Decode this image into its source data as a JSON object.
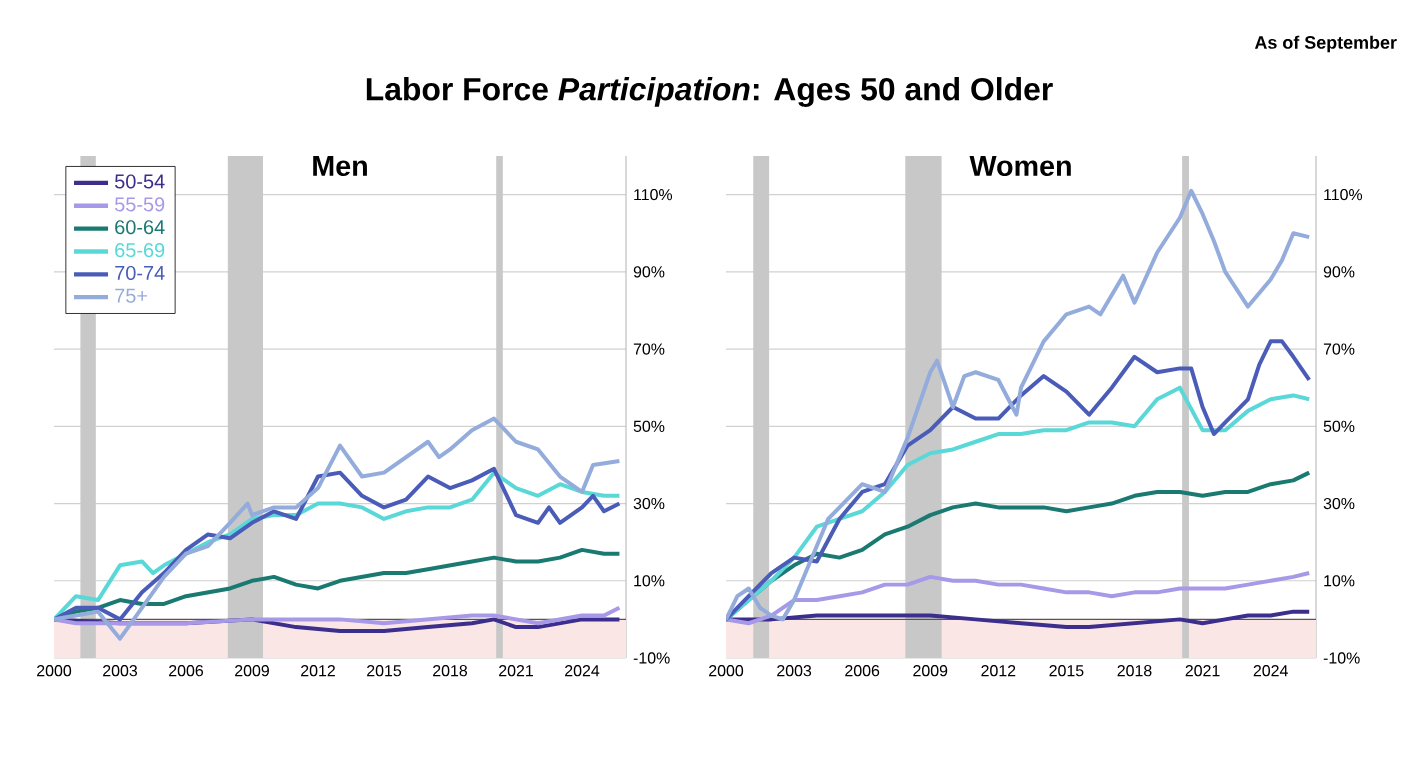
{
  "chart_data": [
    {
      "type": "line",
      "title": "Men",
      "annotations": [
        "Labor Force *Participation*: Ages 50 and Older",
        "As of September"
      ],
      "xlim": [
        2000,
        2026
      ],
      "ylim": [
        -10,
        120
      ],
      "xticks": [
        2000,
        2003,
        2006,
        2009,
        2012,
        2015,
        2018,
        2021,
        2024
      ],
      "yticks": [
        {
          "value": -10,
          "label": "-10%"
        },
        {
          "value": 10,
          "label": "10%"
        },
        {
          "value": 30,
          "label": "30%"
        },
        {
          "value": 50,
          "label": "50%"
        },
        {
          "value": 70,
          "label": "70%"
        },
        {
          "value": 90,
          "label": "90%"
        },
        {
          "value": 110,
          "label": "110%"
        }
      ],
      "grid": "y",
      "legend": "top left",
      "bands": [
        {
          "axis": "y",
          "from": -10,
          "to": 0,
          "color": "#fbe6e6"
        },
        {
          "axis": "x",
          "from": 2001.2,
          "to": 2001.9,
          "color": "#c8c8c8"
        },
        {
          "axis": "x",
          "from": 2007.9,
          "to": 2009.5,
          "color": "#c8c8c8"
        },
        {
          "axis": "x",
          "from": 2020.1,
          "to": 2020.4,
          "color": "#c8c8c8"
        }
      ],
      "ref_lines": [
        {
          "axis": "y",
          "value": 0,
          "color": "#555555"
        }
      ],
      "series": [
        {
          "name": "50-54",
          "color": "#3b2e8c",
          "x": [
            2000,
            2003,
            2006,
            2009,
            2011,
            2013,
            2015,
            2017,
            2019,
            2020,
            2021,
            2022,
            2023,
            2024,
            2025,
            2025.7
          ],
          "values": [
            0,
            -1,
            -1,
            0,
            -2,
            -3,
            -3,
            -2,
            -1,
            0,
            -2,
            -2,
            -1,
            0,
            0,
            0
          ]
        },
        {
          "name": "55-59",
          "color": "#a898e8",
          "x": [
            2000,
            2001,
            2003,
            2006,
            2009,
            2010,
            2012,
            2013,
            2015,
            2017,
            2019,
            2020,
            2021,
            2022,
            2023,
            2024,
            2025,
            2025.7
          ],
          "values": [
            0,
            -1,
            -1,
            -1,
            0,
            0,
            0,
            0,
            -1,
            0,
            1,
            1,
            0,
            -1,
            0,
            1,
            1,
            3
          ]
        },
        {
          "name": "60-64",
          "color": "#1a7a72",
          "x": [
            2000,
            2001,
            2002,
            2003,
            2004,
            2005,
            2006,
            2007,
            2008,
            2009,
            2010,
            2011,
            2012,
            2013,
            2014,
            2015,
            2016,
            2017,
            2018,
            2019,
            2020,
            2021,
            2022,
            2023,
            2024,
            2025,
            2025.7
          ],
          "values": [
            0,
            2,
            3,
            5,
            4,
            4,
            6,
            7,
            8,
            10,
            11,
            9,
            8,
            10,
            11,
            12,
            12,
            13,
            14,
            15,
            16,
            15,
            15,
            16,
            18,
            17,
            17
          ]
        },
        {
          "name": "65-69",
          "color": "#5ad8d8",
          "x": [
            2000,
            2001,
            2002,
            2003,
            2004,
            2004.5,
            2005,
            2006,
            2007,
            2008,
            2009,
            2010,
            2011,
            2012,
            2013,
            2014,
            2015,
            2016,
            2017,
            2018,
            2019,
            2020,
            2021,
            2022,
            2023,
            2024,
            2025,
            2025.7
          ],
          "values": [
            0,
            6,
            5,
            14,
            15,
            12,
            14,
            17,
            20,
            22,
            26,
            27,
            27,
            30,
            30,
            29,
            26,
            28,
            29,
            29,
            31,
            38,
            34,
            32,
            35,
            33,
            32,
            32
          ]
        },
        {
          "name": "70-74",
          "color": "#4a5cb8",
          "x": [
            2000,
            2001,
            2002,
            2003,
            2004,
            2005,
            2006,
            2007,
            2008,
            2009,
            2010,
            2011,
            2012,
            2013,
            2014,
            2015,
            2016,
            2017,
            2018,
            2019,
            2020,
            2021,
            2022,
            2022.5,
            2023,
            2024,
            2024.5,
            2025,
            2025.7
          ],
          "values": [
            0,
            3,
            3,
            0,
            7,
            12,
            18,
            22,
            21,
            25,
            28,
            26,
            37,
            38,
            32,
            29,
            31,
            37,
            34,
            36,
            39,
            27,
            25,
            29,
            25,
            29,
            32,
            28,
            30
          ]
        },
        {
          "name": "75+",
          "color": "#94acdc",
          "x": [
            2000,
            2001,
            2002,
            2003,
            2004,
            2005,
            2006,
            2007,
            2008,
            2008.8,
            2009,
            2010,
            2011,
            2012,
            2013,
            2014,
            2015,
            2016,
            2017,
            2017.5,
            2018,
            2019,
            2020,
            2021,
            2022,
            2023,
            2024,
            2024.5,
            2025.7
          ],
          "values": [
            0,
            1,
            2,
            -5,
            3,
            11,
            17,
            19,
            25,
            30,
            27,
            29,
            29,
            34,
            45,
            37,
            38,
            42,
            46,
            42,
            44,
            49,
            52,
            46,
            44,
            37,
            33,
            40,
            41
          ]
        }
      ]
    },
    {
      "type": "line",
      "title": "Women",
      "xlim": [
        2000,
        2026
      ],
      "ylim": [
        -10,
        120
      ],
      "xticks": [
        2000,
        2003,
        2006,
        2009,
        2012,
        2015,
        2018,
        2021,
        2024
      ],
      "yticks": [
        {
          "value": -10,
          "label": "-10%"
        },
        {
          "value": 10,
          "label": "10%"
        },
        {
          "value": 30,
          "label": "30%"
        },
        {
          "value": 50,
          "label": "50%"
        },
        {
          "value": 70,
          "label": "70%"
        },
        {
          "value": 90,
          "label": "90%"
        },
        {
          "value": 110,
          "label": "110%"
        }
      ],
      "grid": "y",
      "bands": [
        {
          "axis": "y",
          "from": -10,
          "to": 0,
          "color": "#fbe6e6"
        },
        {
          "axis": "x",
          "from": 2001.2,
          "to": 2001.9,
          "color": "#c8c8c8"
        },
        {
          "axis": "x",
          "from": 2007.9,
          "to": 2009.5,
          "color": "#c8c8c8"
        },
        {
          "axis": "x",
          "from": 2020.1,
          "to": 2020.4,
          "color": "#c8c8c8"
        }
      ],
      "ref_lines": [
        {
          "axis": "y",
          "value": 0,
          "color": "#555555"
        }
      ],
      "series": [
        {
          "color": "#3b2e8c",
          "x": [
            2000,
            2002,
            2004,
            2006,
            2008,
            2009,
            2011,
            2013,
            2015,
            2016,
            2018,
            2020,
            2021,
            2022,
            2023,
            2024,
            2025,
            2025.7
          ],
          "values": [
            0,
            0,
            1,
            1,
            1,
            1,
            0,
            -1,
            -2,
            -2,
            -1,
            0,
            -1,
            0,
            1,
            1,
            2,
            2
          ]
        },
        {
          "color": "#a898e8",
          "x": [
            2000,
            2001,
            2002,
            2003,
            2004,
            2005,
            2006,
            2007,
            2008,
            2009,
            2010,
            2011,
            2012,
            2013,
            2014,
            2015,
            2016,
            2017,
            2018,
            2019,
            2020,
            2021,
            2022,
            2023,
            2024,
            2025,
            2025.7
          ],
          "values": [
            0,
            -1,
            1,
            5,
            5,
            6,
            7,
            9,
            9,
            11,
            10,
            10,
            9,
            9,
            8,
            7,
            7,
            6,
            7,
            7,
            8,
            8,
            8,
            9,
            10,
            11,
            12
          ]
        },
        {
          "color": "#1a7a72",
          "x": [
            2000,
            2001,
            2002,
            2003,
            2004,
            2005,
            2006,
            2007,
            2008,
            2009,
            2010,
            2011,
            2012,
            2013,
            2014,
            2015,
            2016,
            2017,
            2018,
            2019,
            2020,
            2021,
            2022,
            2023,
            2024,
            2025,
            2025.7
          ],
          "values": [
            0,
            5,
            10,
            14,
            17,
            16,
            18,
            22,
            24,
            27,
            29,
            30,
            29,
            29,
            29,
            28,
            29,
            30,
            32,
            33,
            33,
            32,
            33,
            33,
            35,
            36,
            38
          ]
        },
        {
          "color": "#5ad8d8",
          "x": [
            2000,
            2001,
            2002,
            2003,
            2004,
            2005,
            2006,
            2007,
            2008,
            2009,
            2010,
            2011,
            2012,
            2013,
            2014,
            2015,
            2016,
            2017,
            2018,
            2019,
            2020,
            2021,
            2022,
            2023,
            2024,
            2025,
            2025.7
          ],
          "values": [
            0,
            5,
            10,
            16,
            24,
            26,
            28,
            33,
            40,
            43,
            44,
            46,
            48,
            48,
            49,
            49,
            51,
            51,
            50,
            57,
            60,
            49,
            49,
            54,
            57,
            58,
            57
          ]
        },
        {
          "color": "#4a5cb8",
          "x": [
            2000,
            2001,
            2002,
            2003,
            2004,
            2005,
            2006,
            2007,
            2008,
            2009,
            2010,
            2011,
            2012,
            2013,
            2014,
            2015,
            2016,
            2017,
            2018,
            2019,
            2020,
            2020.5,
            2021,
            2021.5,
            2022,
            2023,
            2023.5,
            2024,
            2024.5,
            2025,
            2025.7
          ],
          "values": [
            0,
            6,
            12,
            16,
            15,
            26,
            33,
            35,
            45,
            49,
            55,
            52,
            52,
            58,
            63,
            59,
            53,
            60,
            68,
            64,
            65,
            65,
            55,
            48,
            51,
            57,
            66,
            72,
            72,
            68,
            62
          ]
        },
        {
          "color": "#94acdc",
          "x": [
            2000,
            2000.5,
            2001,
            2001.5,
            2002,
            2002.5,
            2003,
            2004,
            2004.5,
            2005,
            2006,
            2007,
            2008,
            2009,
            2009.3,
            2010,
            2010.5,
            2011,
            2012,
            2012.8,
            2013,
            2014,
            2015,
            2016,
            2016.5,
            2017,
            2017.5,
            2018,
            2019,
            2020,
            2020.5,
            2021,
            2021.5,
            2022,
            2023,
            2024,
            2024.5,
            2025,
            2025.7
          ],
          "values": [
            0,
            6,
            8,
            3,
            1,
            0,
            5,
            19,
            26,
            29,
            35,
            33,
            47,
            64,
            67,
            55,
            63,
            64,
            62,
            53,
            60,
            72,
            79,
            81,
            79,
            84,
            89,
            82,
            95,
            104,
            111,
            105,
            98,
            90,
            81,
            88,
            93,
            100,
            99
          ]
        }
      ]
    }
  ]
}
